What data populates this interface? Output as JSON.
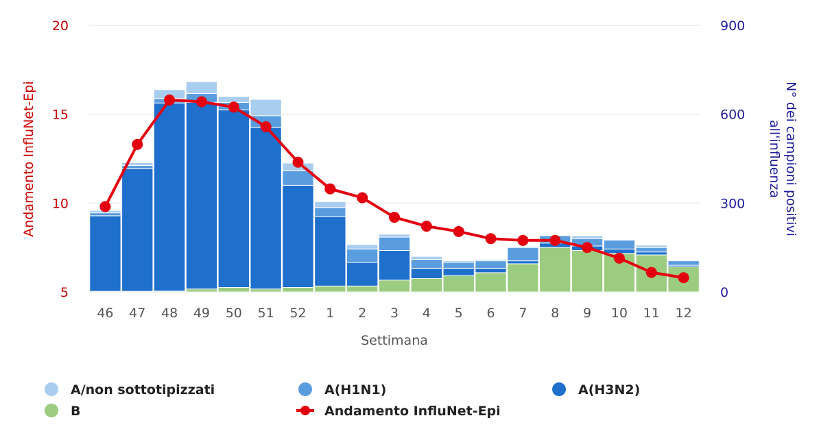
{
  "chart_data": {
    "type": "bar",
    "stacked": true,
    "title": "",
    "xlabel": "Settimana",
    "ylabel_left": "Andamento InfluNet-Epi",
    "ylabel_right": "N° dei campioni positivi all'influenza",
    "ylabel_right_lines": [
      "N° dei campioni positivi",
      "all'influenza"
    ],
    "ylim_left": [
      5,
      20
    ],
    "yticks_left": [
      5,
      10,
      15,
      20
    ],
    "ylim_right": [
      0,
      900
    ],
    "yticks_right": [
      0,
      300,
      600,
      900
    ],
    "grid": true,
    "legend_position": "bottom",
    "categories": [
      "46",
      "47",
      "48",
      "49",
      "50",
      "51",
      "52",
      "1",
      "2",
      "3",
      "4",
      "5",
      "6",
      "7",
      "8",
      "9",
      "10",
      "11",
      "12"
    ],
    "series": [
      {
        "name": "B",
        "axis": "right",
        "color": "#9ccc7f",
        "values": [
          2,
          2,
          3,
          10,
          15,
          10,
          15,
          20,
          20,
          40,
          45,
          55,
          65,
          95,
          150,
          140,
          130,
          125,
          85
        ]
      },
      {
        "name": "A(H3N2)",
        "axis": "right",
        "color": "#1f6fcc",
        "values": [
          255,
          415,
          635,
          630,
          600,
          545,
          345,
          235,
          80,
          100,
          35,
          25,
          15,
          10,
          15,
          15,
          15,
          10,
          5
        ]
      },
      {
        "name": "A(H1N1)",
        "axis": "right",
        "color": "#5a9ddf",
        "values": [
          10,
          10,
          15,
          30,
          25,
          40,
          50,
          30,
          45,
          45,
          30,
          20,
          25,
          45,
          25,
          25,
          30,
          15,
          15
        ]
      },
      {
        "name": "A/non sottotipizzati",
        "axis": "right",
        "color": "#a9cdef",
        "values": [
          8,
          10,
          30,
          40,
          20,
          55,
          25,
          20,
          15,
          10,
          10,
          5,
          5,
          0,
          0,
          10,
          0,
          8,
          0
        ]
      },
      {
        "name": "Andamento InfluNet-Epi",
        "type": "line",
        "axis": "left",
        "color": "#e3000f",
        "values": [
          9.8,
          13.3,
          15.8,
          15.7,
          15.4,
          14.3,
          12.3,
          10.8,
          10.3,
          9.2,
          8.7,
          8.4,
          8.0,
          7.9,
          7.9,
          7.5,
          6.9,
          6.1,
          5.8
        ]
      }
    ]
  },
  "legend": {
    "items": [
      {
        "label": "A/non sottotipizzati",
        "color": "#a9cdef",
        "marker": "circle"
      },
      {
        "label": "A(H1N1)",
        "color": "#5a9ddf",
        "marker": "circle"
      },
      {
        "label": "A(H3N2)",
        "color": "#1f6fcc",
        "marker": "circle"
      },
      {
        "label": "B",
        "color": "#9ccc7f",
        "marker": "circle"
      },
      {
        "label": "Andamento InfluNet-Epi",
        "color": "#e3000f",
        "marker": "line-dot"
      }
    ]
  },
  "colors": {
    "left_axis": "#cc0000",
    "right_axis": "#1f1f9e",
    "tick": "#555555",
    "grid": "#e6e6e6"
  }
}
